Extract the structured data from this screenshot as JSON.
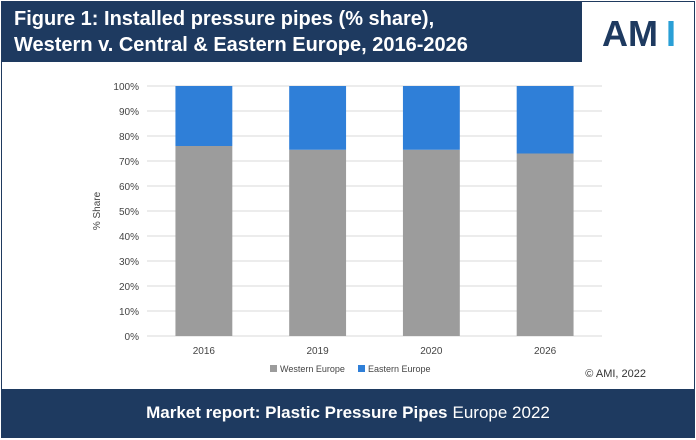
{
  "header": {
    "title_line1": "Figure 1: Installed pressure pipes (% share),",
    "title_line2": "Western v. Central & Eastern Europe, 2016-2026"
  },
  "logo": {
    "text_am": "AM",
    "text_i": "I",
    "color_dark": "#1e3a60",
    "color_accent": "#2a9fd6"
  },
  "chart_data": {
    "type": "bar",
    "stacked": true,
    "categories": [
      "2016",
      "2019",
      "2020",
      "2026"
    ],
    "series": [
      {
        "name": "Western Europe",
        "values": [
          76,
          74.5,
          74.5,
          73
        ],
        "color": "#9c9c9c"
      },
      {
        "name": "Eastern Europe",
        "values": [
          24,
          25.5,
          25.5,
          27
        ],
        "color": "#2f7fd8"
      }
    ],
    "ylabel": "% Share",
    "ylim": [
      0,
      100
    ],
    "yticks": [
      "0%",
      "10%",
      "20%",
      "30%",
      "40%",
      "50%",
      "60%",
      "70%",
      "80%",
      "90%",
      "100%"
    ],
    "grid": true,
    "legend": "bottom"
  },
  "copyright": "© AMI, 2022",
  "footer": {
    "bold_text": "Market report: Plastic Pressure Pipes",
    "light_text": "Europe 2022"
  }
}
